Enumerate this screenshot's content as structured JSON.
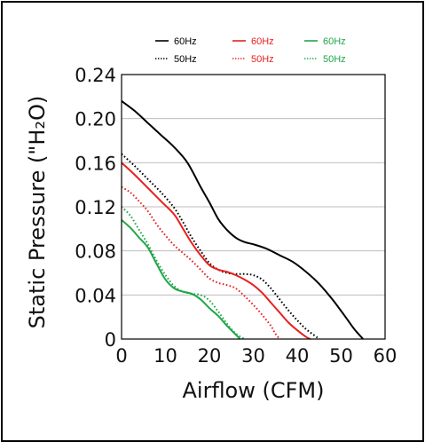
{
  "chart_data": {
    "type": "line",
    "title": "",
    "xlabel": "Airflow (CFM)",
    "ylabel": "Static Pressure (\"H₂O)",
    "xlim": [
      0,
      60
    ],
    "ylim": [
      0,
      0.24
    ],
    "xticks": [
      "0",
      "10",
      "20",
      "30",
      "40",
      "50",
      "60"
    ],
    "yticks": [
      "0",
      "0.04",
      "0.08",
      "0.12",
      "0.16",
      "0.20",
      "0.24"
    ],
    "grid": "horizontal",
    "legend_position": "top",
    "series": [
      {
        "name": "60Hz",
        "color": "#000000",
        "style": "solid",
        "x": [
          0,
          3,
          6,
          9,
          12,
          15,
          18,
          20,
          22,
          24,
          26,
          28,
          30,
          33,
          36,
          39,
          42,
          45,
          48,
          51,
          53,
          55
        ],
        "y": [
          0.216,
          0.207,
          0.196,
          0.185,
          0.174,
          0.16,
          0.138,
          0.124,
          0.109,
          0.099,
          0.092,
          0.088,
          0.086,
          0.082,
          0.076,
          0.07,
          0.061,
          0.05,
          0.036,
          0.02,
          0.009,
          0.0
        ]
      },
      {
        "name": "50Hz",
        "color": "#000000",
        "style": "dotted",
        "x": [
          0,
          3,
          6,
          9,
          12,
          14,
          16,
          18,
          20,
          22,
          24,
          26,
          28,
          30,
          32,
          34,
          36,
          38,
          40,
          42,
          44,
          45
        ],
        "y": [
          0.168,
          0.157,
          0.145,
          0.133,
          0.119,
          0.106,
          0.092,
          0.08,
          0.069,
          0.063,
          0.06,
          0.059,
          0.059,
          0.058,
          0.054,
          0.046,
          0.036,
          0.026,
          0.017,
          0.009,
          0.003,
          0.0
        ]
      },
      {
        "name": "60Hz",
        "color": "#e8201f",
        "style": "solid",
        "x": [
          0,
          3,
          6,
          9,
          12,
          14,
          16,
          18,
          20,
          22,
          24,
          26,
          28,
          30,
          32,
          34,
          36,
          38,
          40,
          42,
          43
        ],
        "y": [
          0.16,
          0.149,
          0.137,
          0.125,
          0.113,
          0.1,
          0.087,
          0.076,
          0.067,
          0.063,
          0.061,
          0.058,
          0.054,
          0.049,
          0.042,
          0.033,
          0.024,
          0.015,
          0.008,
          0.002,
          0.0
        ]
      },
      {
        "name": "50Hz",
        "color": "#e8201f",
        "style": "dotted",
        "x": [
          0,
          2,
          4,
          6,
          8,
          10,
          12,
          14,
          16,
          18,
          20,
          22,
          24,
          26,
          28,
          30,
          32,
          34,
          35,
          36
        ],
        "y": [
          0.138,
          0.133,
          0.125,
          0.116,
          0.104,
          0.094,
          0.085,
          0.078,
          0.071,
          0.063,
          0.055,
          0.051,
          0.049,
          0.046,
          0.039,
          0.031,
          0.022,
          0.012,
          0.005,
          0.0
        ]
      },
      {
        "name": "60Hz",
        "color": "#21a64a",
        "style": "solid",
        "x": [
          0,
          2,
          4,
          6,
          8,
          10,
          12,
          14,
          16,
          18,
          20,
          22,
          24,
          26,
          27
        ],
        "y": [
          0.108,
          0.101,
          0.092,
          0.083,
          0.068,
          0.054,
          0.046,
          0.043,
          0.041,
          0.036,
          0.028,
          0.021,
          0.012,
          0.004,
          0.0
        ]
      },
      {
        "name": "50Hz",
        "color": "#21a64a",
        "style": "dotted",
        "x": [
          0,
          2,
          4,
          6,
          8,
          10,
          12,
          14,
          16,
          18,
          20,
          22,
          24,
          26,
          28
        ],
        "y": [
          0.12,
          0.112,
          0.099,
          0.086,
          0.071,
          0.058,
          0.048,
          0.043,
          0.041,
          0.04,
          0.035,
          0.025,
          0.014,
          0.005,
          0.0
        ]
      }
    ]
  }
}
